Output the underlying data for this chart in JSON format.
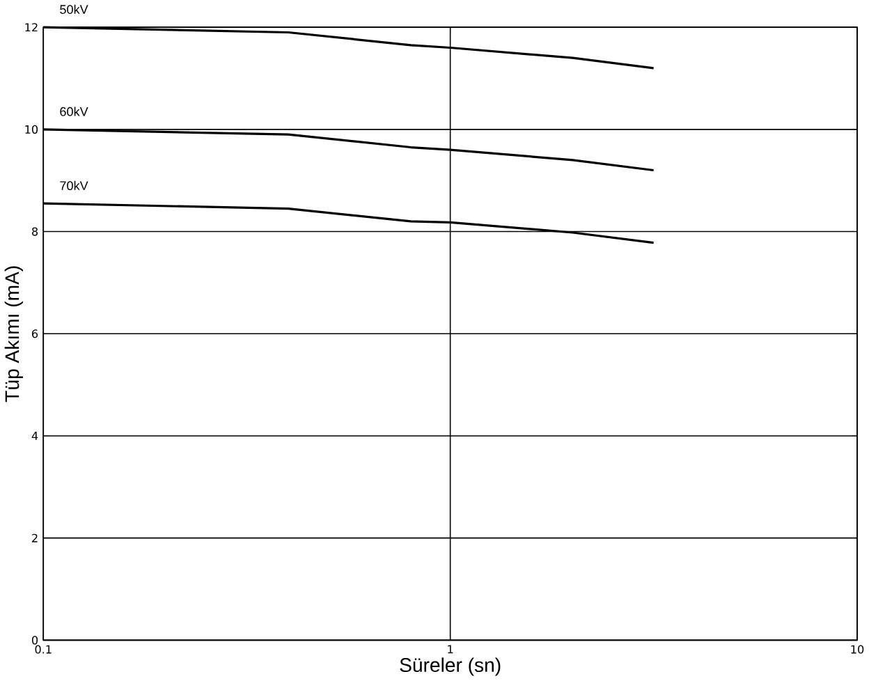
{
  "chart_data": {
    "type": "line",
    "xlabel": "Süreler (sn)",
    "ylabel": "Tüp Akımı (mA)",
    "log": "x",
    "grid": true,
    "xlim": [
      0.1,
      10
    ],
    "xticks": [
      0.1,
      1,
      10
    ],
    "ylim": [
      0,
      12
    ],
    "yticks": [
      0,
      2,
      4,
      6,
      8,
      10,
      12
    ],
    "line_style": "solid",
    "marker": "none",
    "series": [
      {
        "name": "50kV",
        "color": "#000000",
        "x": [
          0.1,
          0.4,
          0.8,
          1,
          2,
          3.16
        ],
        "values": [
          12,
          11.9,
          11.65,
          11.6,
          11.4,
          11.2
        ]
      },
      {
        "name": "60kV",
        "color": "#000000",
        "x": [
          0.1,
          0.4,
          0.8,
          1,
          2,
          3.16
        ],
        "values": [
          10,
          9.9,
          9.65,
          9.6,
          9.4,
          9.2
        ]
      },
      {
        "name": "70kV",
        "color": "#000000",
        "x": [
          0.1,
          0.4,
          0.8,
          1,
          2,
          3.16
        ],
        "values": [
          8.55,
          8.45,
          8.2,
          8.18,
          7.98,
          7.78
        ]
      }
    ]
  }
}
